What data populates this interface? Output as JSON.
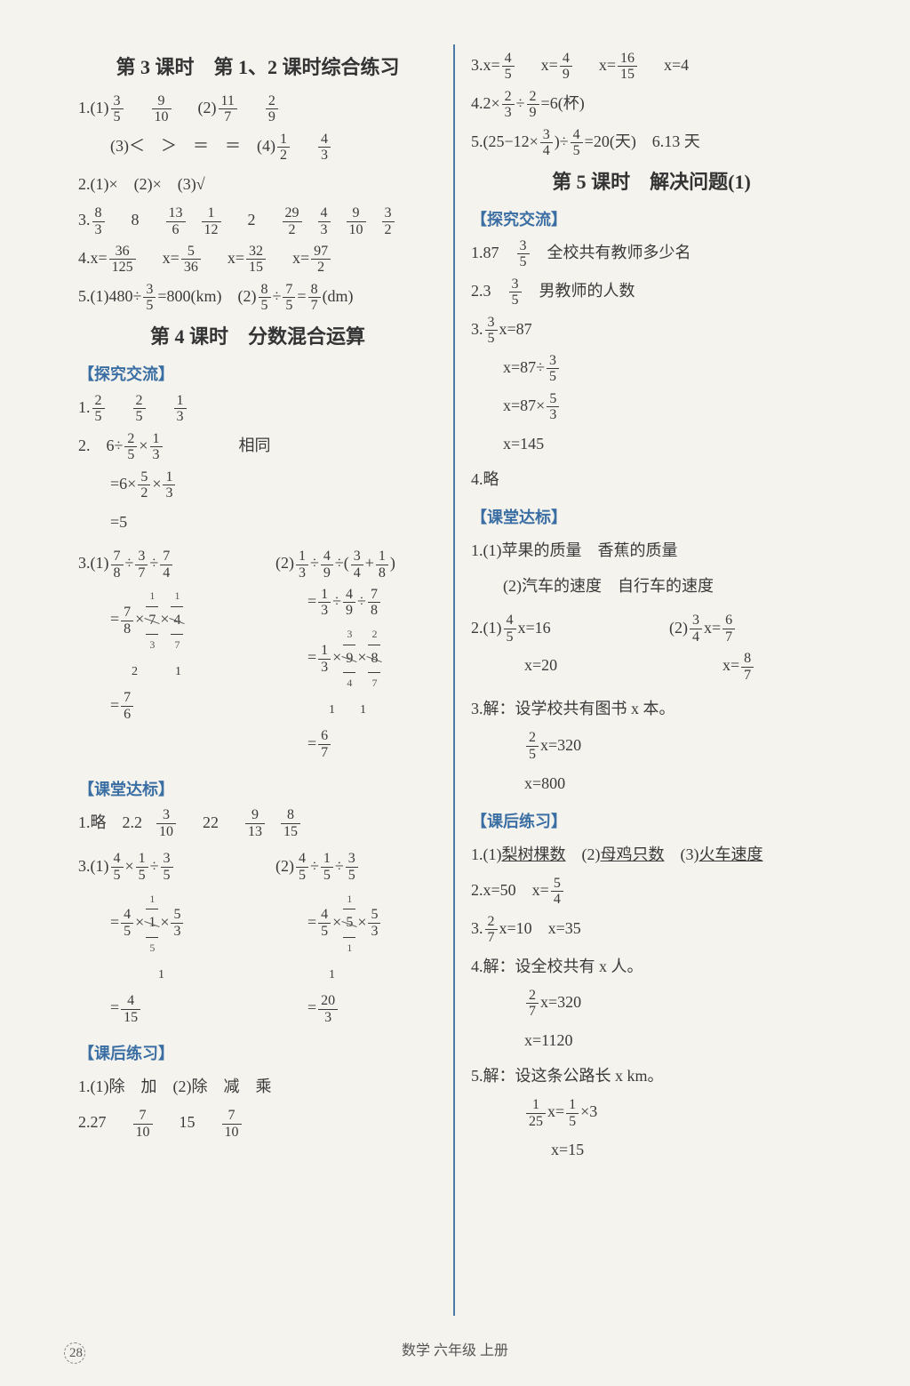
{
  "footer": "数学 六年级 上册",
  "page_num": "28",
  "left": {
    "t1": "第 3 课时　第 1、2 课时综合练习",
    "l1a": "1.(1)",
    "l1b": "(2)",
    "l2a": "(3)＜　＞　＝　＝　(4)",
    "l3": "2.(1)×　(2)×　(3)√",
    "l4": "3.",
    "l5": "4.",
    "l6": "5.(1)480÷",
    "l6b": "=800(km)　(2)",
    "l6c": "(dm)",
    "t2": "第 4 课时　分数混合运算",
    "s1": "【探究交流】",
    "p1": "1.",
    "p2a": "2.　6÷",
    "p2b": "相同",
    "p2c": "=6×",
    "p2d": "=5",
    "p3a": "3.(1)",
    "p3b": "(2)",
    "s2": "【课堂达标】",
    "c1": "1.略　2.2",
    "c1b": "22",
    "c2a": "3.(1)",
    "c2b": "(2)",
    "s3": "【课后练习】",
    "h1": "1.(1)除　加　(2)除　减　乘",
    "h2": "2.27",
    "h2b": "15"
  },
  "right": {
    "r1": "3.",
    "r1b": "x=4",
    "r2": "4.2×",
    "r2b": "=6(杯)",
    "r3a": "5.",
    "r3b": "=20(天)　6.13 天",
    "t3": "第 5 课时　解决问题(1)",
    "s1": "【探究交流】",
    "e1": "1.87　",
    "e1b": "　全校共有教师多少名",
    "e2": "2.3　",
    "e2b": "　男教师的人数",
    "e3": "3.",
    "e3b": "x=87",
    "e4": "x=87÷",
    "e5": "x=87×",
    "e6": "x=145",
    "e7": "4.略",
    "s2": "【课堂达标】",
    "d1": "1.(1)苹果的质量　香蕉的质量",
    "d1b": "(2)汽车的速度　自行车的速度",
    "d2a": "2.(1)",
    "d2a2": "x=16",
    "d2b": "(2)",
    "d2b2": "x=",
    "d2c": "x=20",
    "d2d": "x=",
    "d3": "3.解：设学校共有图书 x 本。",
    "d3b": "x=320",
    "d3c": "x=800",
    "s3": "【课后练习】",
    "f1": "1.(1)",
    "f1a": "梨树棵数",
    "f1b": "(2)",
    "f1c": "母鸡只数",
    "f1d": "(3)",
    "f1e": "火车速度",
    "f2": "2.x=50　x=",
    "f3": "3.",
    "f3b": "x=10　x=35",
    "f4": "4.解：设全校共有 x 人。",
    "f4b": "x=320",
    "f4c": "x=1120",
    "f5": "5.解：设这条公路长 x km。",
    "f5b": "x=",
    "f5c": "×3",
    "f5d": "x=15"
  }
}
